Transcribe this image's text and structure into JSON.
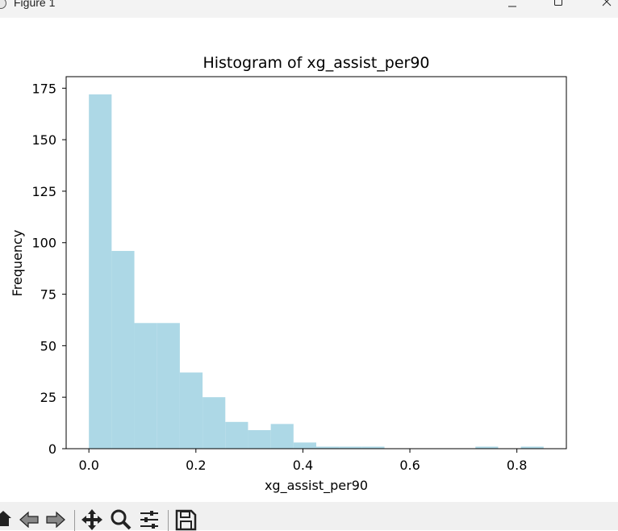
{
  "window": {
    "title": "Figure 1"
  },
  "toolbar": {
    "tools": [
      "home-icon",
      "back-arrow-icon",
      "forward-arrow-icon",
      "pan-icon",
      "zoom-icon",
      "configure-subplots-icon",
      "save-icon"
    ]
  },
  "chart_data": {
    "type": "bar",
    "title": "Histogram of xg_assist_per90",
    "xlabel": "xg_assist_per90",
    "ylabel": "Frequency",
    "bin_start": 0.0,
    "bin_width": 0.0425,
    "values": [
      172,
      96,
      61,
      61,
      37,
      25,
      13,
      9,
      12,
      3,
      1,
      1,
      1,
      0,
      0,
      0,
      0,
      1,
      0,
      1
    ],
    "xlim": [
      -0.0425,
      0.8925
    ],
    "ylim": [
      0,
      180.6
    ],
    "xticks": [
      0.0,
      0.2,
      0.4,
      0.6,
      0.8
    ],
    "xtick_labels": [
      "0.0",
      "0.2",
      "0.4",
      "0.6",
      "0.8"
    ],
    "yticks": [
      0,
      25,
      50,
      75,
      100,
      125,
      150,
      175
    ],
    "ytick_labels": [
      "0",
      "25",
      "50",
      "75",
      "100",
      "125",
      "150",
      "175"
    ],
    "bar_color": "#add8e6",
    "grid": false,
    "legend": "none"
  }
}
